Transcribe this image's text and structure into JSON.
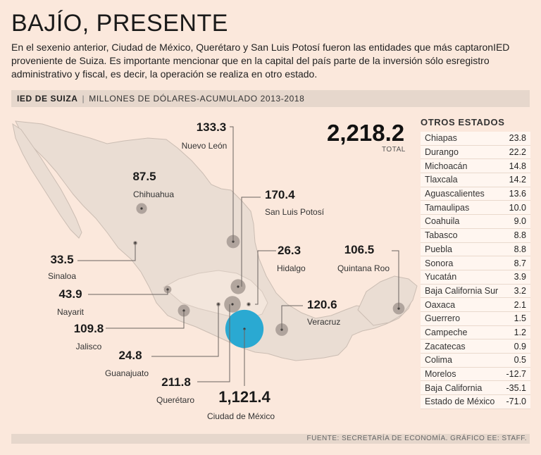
{
  "title": "BAJÍO, PRESENTE",
  "intro": "En el sexenio anterior, Ciudad de México, Querétaro y San Luis Potosí fueron las entidades que más captaronIED proveniente de Suiza. Es importante mencionar que en la capital del país parte de la inversión sólo esregistro administrativo y fiscal, es decir, la operación se realiza en otro estado.",
  "header": {
    "strong": "IED DE SUIZA",
    "sep": "|",
    "subtitle": "MILLONES DE DÓLARES-ACUMULADO 2013-2018"
  },
  "total": {
    "value": "2,218.2",
    "label": "TOTAL"
  },
  "side": {
    "title": "OTROS ESTADOS",
    "rows": [
      {
        "name": "Chiapas",
        "value": "23.8"
      },
      {
        "name": "Durango",
        "value": "22.2"
      },
      {
        "name": "Michoacán",
        "value": "14.8"
      },
      {
        "name": "Tlaxcala",
        "value": "14.2"
      },
      {
        "name": "Aguascalientes",
        "value": "13.6"
      },
      {
        "name": "Tamaulipas",
        "value": "10.0"
      },
      {
        "name": "Coahuila",
        "value": "9.0"
      },
      {
        "name": "Tabasco",
        "value": "8.8"
      },
      {
        "name": "Puebla",
        "value": "8.8"
      },
      {
        "name": "Sonora",
        "value": "8.7"
      },
      {
        "name": "Yucatán",
        "value": "3.9"
      },
      {
        "name": "Baja California Sur",
        "value": "3.2"
      },
      {
        "name": "Oaxaca",
        "value": "2.1"
      },
      {
        "name": "Guerrero",
        "value": "1.5"
      },
      {
        "name": "Campeche",
        "value": "1.2"
      },
      {
        "name": "Zacatecas",
        "value": "0.9"
      },
      {
        "name": "Colima",
        "value": "0.5"
      },
      {
        "name": "Morelos",
        "value": "-12.7"
      },
      {
        "name": "Baja California",
        "value": "-35.1"
      },
      {
        "name": "Estado de México",
        "value": "-71.0"
      }
    ]
  },
  "source": "FUENTE: SECRETARÍA DE ECONOMÍA. GRÁFICO EE: STAFF.",
  "colors": {
    "bubble": "#a69a93",
    "highlight": "#2aa9d2",
    "map": "#eaddd3",
    "background": "#fbe8dc"
  },
  "chart_data": {
    "type": "bubble-map",
    "series": [
      {
        "name": "Nuevo León",
        "value": 133.3,
        "label": "133.3"
      },
      {
        "name": "Chihuahua",
        "value": 87.5,
        "label": "87.5"
      },
      {
        "name": "San Luis Potosí",
        "value": 170.4,
        "label": "170.4"
      },
      {
        "name": "Sinaloa",
        "value": 33.5,
        "label": "33.5"
      },
      {
        "name": "Hidalgo",
        "value": 26.3,
        "label": "26.3"
      },
      {
        "name": "Quintana Roo",
        "value": 106.5,
        "label": "106.5"
      },
      {
        "name": "Nayarit",
        "value": 43.9,
        "label": "43.9"
      },
      {
        "name": "Veracruz",
        "value": 120.6,
        "label": "120.6"
      },
      {
        "name": "Jalisco",
        "value": 109.8,
        "label": "109.8"
      },
      {
        "name": "Guanajuato",
        "value": 24.8,
        "label": "24.8"
      },
      {
        "name": "Querétaro",
        "value": 211.8,
        "label": "211.8"
      },
      {
        "name": "Ciudad de México",
        "value": 1121.4,
        "label": "1,121.4",
        "highlight": true
      }
    ]
  }
}
